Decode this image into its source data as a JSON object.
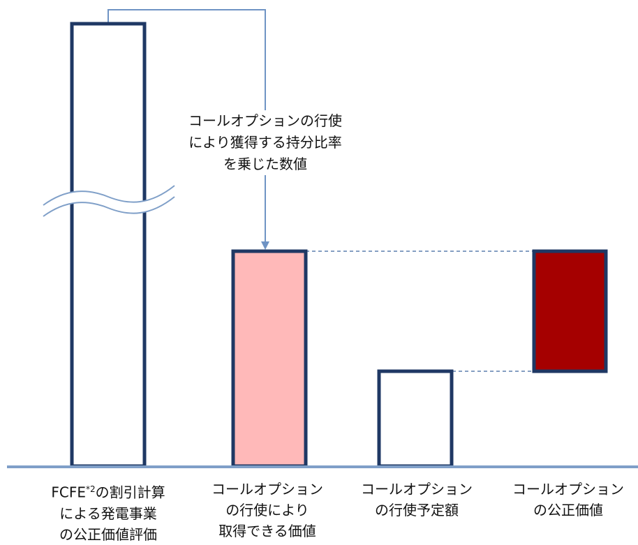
{
  "colors": {
    "bar_outline": "#1f3864",
    "baseline": "#7f9fc8",
    "connector": "#6f93c4",
    "dashed_guide": "#5b7fae",
    "exercise_value_fill": "#ffb9b9",
    "fair_value_fill": "#a50000",
    "empty_fill": "#ffffff"
  },
  "callout": {
    "lines": [
      "コールオプションの行使",
      "により獲得する持分比率",
      "を乗じた数値"
    ]
  },
  "bars": [
    {
      "id": "fcfe-valuation",
      "label_lines": [
        "FCFE*2の割引計算",
        "による発電事業",
        "の公正価値評価"
      ],
      "label_main": "FCFE",
      "label_superscript": "*2",
      "label_rest": "の割引計算",
      "axis_break": true
    },
    {
      "id": "exercise-acquired-value",
      "label_lines": [
        "コールオプション",
        "の行使により",
        "取得できる価値"
      ]
    },
    {
      "id": "planned-exercise-amount",
      "label_lines": [
        "コールオプション",
        "の行使予定額"
      ]
    },
    {
      "id": "call-option-fair-value",
      "label_lines": [
        "コールオプション",
        "の公正価値"
      ]
    }
  ]
}
